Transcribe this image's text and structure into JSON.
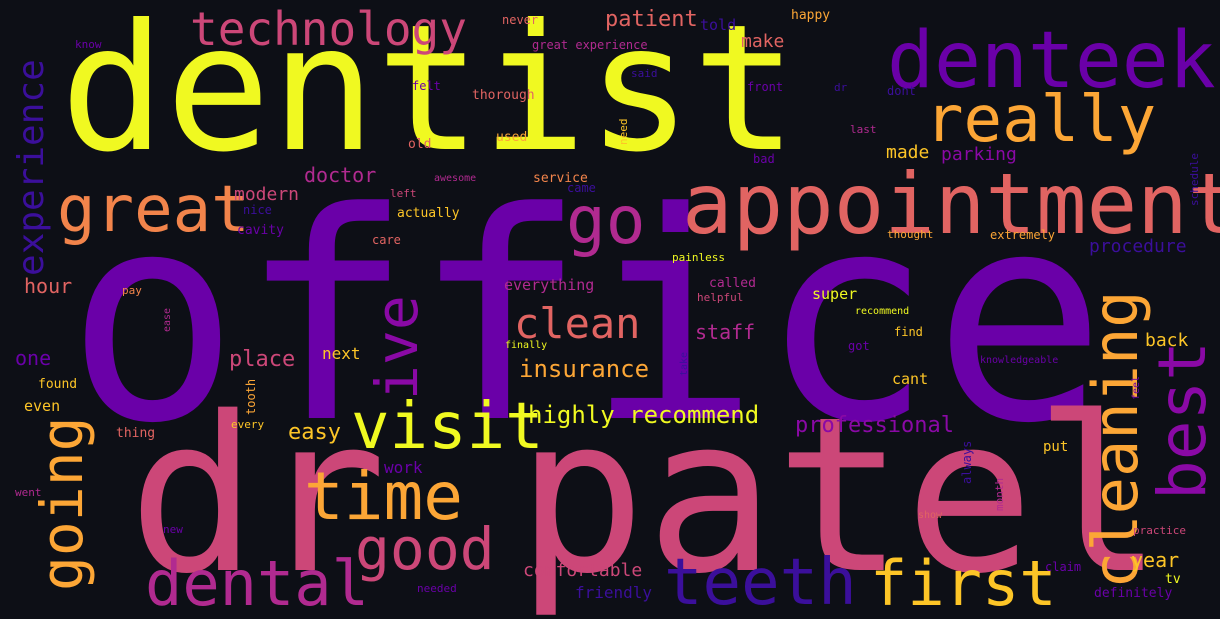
{
  "word_cloud": {
    "background": "#0d0f16",
    "words": [
      {
        "text": "office",
        "color": "#6a00a8",
        "rotated": false
      },
      {
        "text": "dentist",
        "color": "#f0f921",
        "rotated": false
      },
      {
        "text": "dr patel",
        "color": "#cc4778",
        "rotated": false
      },
      {
        "text": "appointment",
        "color": "#e16462",
        "rotated": false
      },
      {
        "text": "denteek",
        "color": "#6a00a8",
        "rotated": false
      },
      {
        "text": "really",
        "color": "#fca636",
        "rotated": false
      },
      {
        "text": "great",
        "color": "#f2844b",
        "rotated": false
      },
      {
        "text": "go",
        "color": "#b12a90",
        "rotated": false
      },
      {
        "text": "technology",
        "color": "#cc4778",
        "rotated": false
      },
      {
        "text": "visit",
        "color": "#f0f921",
        "rotated": false
      },
      {
        "text": "time",
        "color": "#fca636",
        "rotated": false
      },
      {
        "text": "good",
        "color": "#cc4778",
        "rotated": false
      },
      {
        "text": "dental",
        "color": "#b12a90",
        "rotated": false
      },
      {
        "text": "teeth",
        "color": "#3b0f9b",
        "rotated": false
      },
      {
        "text": "first",
        "color": "#fdc527",
        "rotated": false
      },
      {
        "text": "clean",
        "color": "#e16462",
        "rotated": false
      },
      {
        "text": "cleaning",
        "color": "#fca636",
        "rotated": true
      },
      {
        "text": "best",
        "color": "#8a09a5",
        "rotated": true
      },
      {
        "text": "ive",
        "color": "#8a09a5",
        "rotated": true
      },
      {
        "text": "going",
        "color": "#fca636",
        "rotated": true
      },
      {
        "text": "experience",
        "color": "#3b0f9b",
        "rotated": true
      },
      {
        "text": "highly recommend",
        "color": "#f0f921",
        "rotated": false
      },
      {
        "text": "insurance",
        "color": "#fca636",
        "rotated": false
      },
      {
        "text": "professional",
        "color": "#8a09a5",
        "rotated": false
      },
      {
        "text": "procedure",
        "color": "#3b0f9b",
        "rotated": false
      },
      {
        "text": "patient",
        "color": "#e16462",
        "rotated": false
      },
      {
        "text": "doctor",
        "color": "#b12a90",
        "rotated": false
      },
      {
        "text": "modern",
        "color": "#cc4778",
        "rotated": false
      },
      {
        "text": "place",
        "color": "#cc4778",
        "rotated": false
      },
      {
        "text": "staff",
        "color": "#b12a90",
        "rotated": false
      },
      {
        "text": "make",
        "color": "#e16462",
        "rotated": false
      },
      {
        "text": "made",
        "color": "#fdc527",
        "rotated": false
      },
      {
        "text": "parking",
        "color": "#8a09a5",
        "rotated": false
      },
      {
        "text": "comfortable",
        "color": "#cc4778",
        "rotated": false
      },
      {
        "text": "friendly",
        "color": "#3b0f9b",
        "rotated": false
      },
      {
        "text": "easy",
        "color": "#fdc527",
        "rotated": false
      },
      {
        "text": "year",
        "color": "#fdc527",
        "rotated": false
      },
      {
        "text": "back",
        "color": "#fdc527",
        "rotated": false
      },
      {
        "text": "hour",
        "color": "#e16462",
        "rotated": false
      },
      {
        "text": "one",
        "color": "#6a00a8",
        "rotated": false
      },
      {
        "text": "next",
        "color": "#fdc527",
        "rotated": false
      },
      {
        "text": "work",
        "color": "#6a00a8",
        "rotated": false
      },
      {
        "text": "super",
        "color": "#f0f921",
        "rotated": false
      },
      {
        "text": "everything",
        "color": "#b12a90",
        "rotated": false
      },
      {
        "text": "cant",
        "color": "#fdc527",
        "rotated": false
      },
      {
        "text": "even",
        "color": "#fdc527",
        "rotated": false
      },
      {
        "text": "found",
        "color": "#fdc527",
        "rotated": false
      },
      {
        "text": "thing",
        "color": "#e16462",
        "rotated": false
      },
      {
        "text": "every",
        "color": "#fdc527",
        "rotated": false
      },
      {
        "text": "put",
        "color": "#fdc527",
        "rotated": false
      },
      {
        "text": "tv",
        "color": "#f0f921",
        "rotated": false
      },
      {
        "text": "definitely",
        "color": "#6a00a8",
        "rotated": false
      },
      {
        "text": "claim",
        "color": "#6a00a8",
        "rotated": false
      },
      {
        "text": "practice",
        "color": "#cc4778",
        "rotated": false
      },
      {
        "text": "never",
        "color": "#e16462",
        "rotated": false
      },
      {
        "text": "told",
        "color": "#3b0f9b",
        "rotated": false
      },
      {
        "text": "happy",
        "color": "#fca636",
        "rotated": false
      },
      {
        "text": "great experience",
        "color": "#b12a90",
        "rotated": false
      },
      {
        "text": "know",
        "color": "#6a00a8",
        "rotated": false
      },
      {
        "text": "felt",
        "color": "#6a00a8",
        "rotated": false
      },
      {
        "text": "thorough",
        "color": "#e16462",
        "rotated": false
      },
      {
        "text": "front",
        "color": "#6a00a8",
        "rotated": false
      },
      {
        "text": "dr",
        "color": "#3b0f9b",
        "rotated": false
      },
      {
        "text": "dont",
        "color": "#3b0f9b",
        "rotated": false
      },
      {
        "text": "last",
        "color": "#b12a90",
        "rotated": false
      },
      {
        "text": "old",
        "color": "#e16462",
        "rotated": false
      },
      {
        "text": "used",
        "color": "#fca636",
        "rotated": false
      },
      {
        "text": "bad",
        "color": "#6a00a8",
        "rotated": false
      },
      {
        "text": "left",
        "color": "#cc4778",
        "rotated": false
      },
      {
        "text": "awesome",
        "color": "#b12a90",
        "rotated": false
      },
      {
        "text": "service",
        "color": "#f2844b",
        "rotated": false
      },
      {
        "text": "came",
        "color": "#3b0f9b",
        "rotated": false
      },
      {
        "text": "nice",
        "color": "#3b0f9b",
        "rotated": false
      },
      {
        "text": "actually",
        "color": "#fdc527",
        "rotated": false
      },
      {
        "text": "cavity",
        "color": "#6a00a8",
        "rotated": false
      },
      {
        "text": "care",
        "color": "#e16462",
        "rotated": false
      },
      {
        "text": "thought",
        "color": "#fca636",
        "rotated": false
      },
      {
        "text": "extremely",
        "color": "#fca636",
        "rotated": false
      },
      {
        "text": "painless",
        "color": "#f0f921",
        "rotated": false
      },
      {
        "text": "pay",
        "color": "#f2844b",
        "rotated": false
      },
      {
        "text": "called",
        "color": "#b12a90",
        "rotated": false
      },
      {
        "text": "helpful",
        "color": "#cc4778",
        "rotated": false
      },
      {
        "text": "recommend",
        "color": "#f0f921",
        "rotated": false
      },
      {
        "text": "finally",
        "color": "#f0f921",
        "rotated": false
      },
      {
        "text": "got",
        "color": "#6a00a8",
        "rotated": false
      },
      {
        "text": "find",
        "color": "#fdc527",
        "rotated": false
      },
      {
        "text": "knowledgeable",
        "color": "#6a00a8",
        "rotated": false
      },
      {
        "text": "went",
        "color": "#b12a90",
        "rotated": false
      },
      {
        "text": "new",
        "color": "#6a00a8",
        "rotated": false
      },
      {
        "text": "needed",
        "color": "#6a00a8",
        "rotated": false
      },
      {
        "text": "show",
        "color": "#e16462",
        "rotated": false
      },
      {
        "text": "said",
        "color": "#3b0f9b",
        "rotated": false
      },
      {
        "text": "need",
        "color": "#fdc527",
        "rotated": true
      },
      {
        "text": "schedule",
        "color": "#3b0f9b",
        "rotated": true
      },
      {
        "text": "ease",
        "color": "#b12a90",
        "rotated": true
      },
      {
        "text": "tooth",
        "color": "#fca636",
        "rotated": true
      },
      {
        "text": "always",
        "color": "#3b0f9b",
        "rotated": true
      },
      {
        "text": "month",
        "color": "#b12a90",
        "rotated": true
      },
      {
        "text": "feel",
        "color": "#6a00a8",
        "rotated": true
      },
      {
        "text": "take",
        "color": "#3b0f9b",
        "rotated": true
      }
    ]
  }
}
